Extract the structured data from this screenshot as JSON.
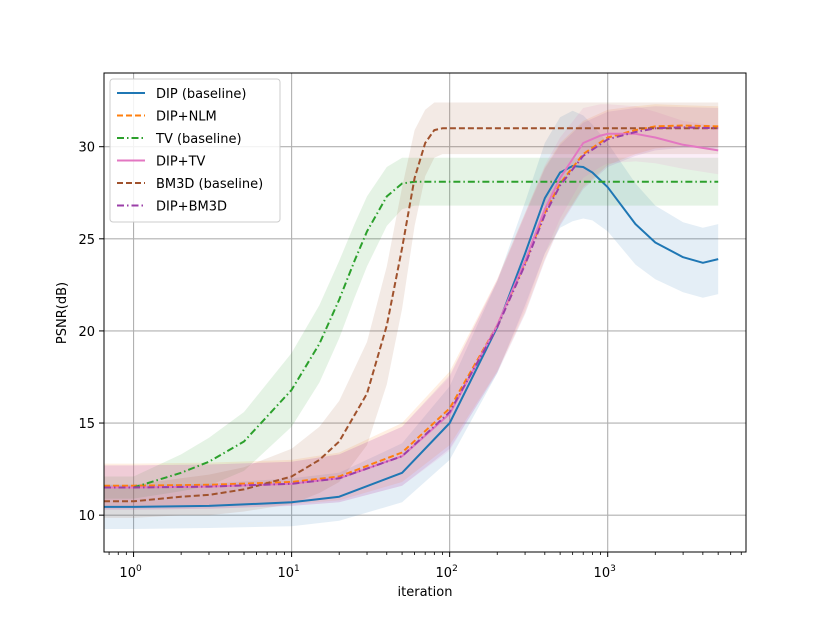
{
  "chart_data": {
    "type": "line",
    "title": "",
    "xlabel": "iteration",
    "ylabel": "PSNR(dB)",
    "xscale": "log",
    "xlim": [
      0.65,
      7500
    ],
    "ylim": [
      8,
      34
    ],
    "x_ticks": [
      {
        "value": 1,
        "base": "10",
        "exp": "0"
      },
      {
        "value": 10,
        "base": "10",
        "exp": "1"
      },
      {
        "value": 100,
        "base": "10",
        "exp": "2"
      },
      {
        "value": 1000,
        "base": "10",
        "exp": "3"
      }
    ],
    "y_ticks": [
      {
        "value": 10,
        "label": "10"
      },
      {
        "value": 15,
        "label": "15"
      },
      {
        "value": 20,
        "label": "20"
      },
      {
        "value": 25,
        "label": "25"
      },
      {
        "value": 30,
        "label": "30"
      }
    ],
    "grid": true,
    "legend_position": "top-left",
    "series": [
      {
        "name": "DIP (baseline)",
        "color": "#1f77b4",
        "dash": "solid",
        "x": [
          0.65,
          1,
          3,
          10,
          20,
          50,
          100,
          200,
          300,
          400,
          500,
          600,
          700,
          800,
          1000,
          1500,
          2000,
          3000,
          4000,
          5000
        ],
        "y": [
          10.45,
          10.45,
          10.5,
          10.7,
          11.0,
          12.3,
          15.0,
          20.2,
          24.2,
          27.2,
          28.6,
          28.95,
          28.9,
          28.6,
          27.8,
          25.8,
          24.8,
          24.0,
          23.7,
          23.9
        ],
        "band": [
          1.2,
          1.2,
          1.2,
          1.3,
          1.3,
          1.6,
          2.0,
          2.5,
          2.8,
          3.0,
          3.0,
          3.0,
          2.8,
          2.6,
          2.4,
          2.2,
          2.0,
          1.9,
          1.9,
          1.9
        ]
      },
      {
        "name": "DIP+NLM",
        "color": "#ff7f0e",
        "dash": "dashed",
        "x": [
          0.65,
          1,
          3,
          10,
          20,
          50,
          100,
          200,
          300,
          400,
          500,
          700,
          1000,
          1500,
          2000,
          3000,
          5000
        ],
        "y": [
          11.6,
          11.6,
          11.65,
          11.8,
          12.1,
          13.4,
          15.8,
          20.3,
          23.7,
          26.4,
          28.0,
          29.6,
          30.5,
          30.9,
          31.1,
          31.15,
          31.1
        ],
        "band": [
          1.2,
          1.2,
          1.2,
          1.2,
          1.3,
          1.6,
          2.0,
          2.5,
          2.7,
          2.5,
          2.2,
          1.8,
          1.5,
          1.3,
          1.2,
          1.1,
          1.1
        ]
      },
      {
        "name": "TV (baseline)",
        "color": "#2ca02c",
        "dash": "dashdot",
        "x": [
          0.65,
          1,
          2,
          3,
          5,
          10,
          15,
          20,
          25,
          30,
          40,
          50,
          60,
          80,
          100,
          1000,
          5000
        ],
        "y": [
          11.5,
          11.5,
          12.3,
          12.9,
          14.0,
          16.8,
          19.3,
          21.7,
          23.8,
          25.4,
          27.3,
          28.0,
          28.1,
          28.1,
          28.1,
          28.1,
          28.1
        ],
        "band": [
          0.6,
          0.6,
          1.0,
          1.3,
          1.6,
          2.0,
          2.1,
          2.1,
          2.0,
          1.9,
          1.6,
          1.4,
          1.3,
          1.3,
          1.3,
          1.3,
          1.3
        ]
      },
      {
        "name": "DIP+TV",
        "color": "#e377c2",
        "dash": "solid",
        "x": [
          0.65,
          1,
          3,
          10,
          20,
          50,
          100,
          200,
          300,
          400,
          500,
          700,
          900,
          1000,
          1500,
          2000,
          3000,
          5000
        ],
        "y": [
          11.5,
          11.5,
          11.55,
          11.7,
          12.0,
          13.2,
          15.5,
          20.3,
          23.8,
          26.6,
          28.3,
          30.2,
          30.6,
          30.7,
          30.7,
          30.5,
          30.1,
          29.8
        ],
        "band": [
          1.2,
          1.2,
          1.2,
          1.2,
          1.3,
          1.6,
          2.0,
          2.5,
          2.6,
          2.4,
          2.2,
          1.9,
          1.7,
          1.6,
          1.5,
          1.4,
          1.3,
          1.3
        ]
      },
      {
        "name": "BM3D (baseline)",
        "color": "#a0522d",
        "dash": "dashed",
        "x": [
          0.65,
          1,
          2,
          3,
          5,
          10,
          15,
          20,
          30,
          40,
          50,
          60,
          70,
          80,
          90,
          100,
          1000,
          5000
        ],
        "y": [
          10.75,
          10.75,
          11.0,
          11.1,
          11.4,
          12.1,
          13.0,
          14.0,
          16.6,
          20.3,
          24.5,
          28.3,
          30.2,
          30.9,
          31.0,
          31.0,
          31.0,
          31.0
        ],
        "band": [
          0.9,
          0.9,
          1.0,
          1.1,
          1.2,
          1.5,
          1.8,
          2.2,
          2.8,
          3.2,
          3.3,
          2.6,
          1.8,
          1.5,
          1.4,
          1.4,
          1.4,
          1.4
        ]
      },
      {
        "name": "DIP+BM3D",
        "color": "#9b3fa8",
        "dash": "dashdot",
        "x": [
          0.65,
          1,
          3,
          10,
          20,
          50,
          100,
          200,
          300,
          400,
          500,
          700,
          1000,
          1500,
          2000,
          3000,
          5000
        ],
        "y": [
          11.5,
          11.5,
          11.55,
          11.7,
          12.0,
          13.2,
          15.6,
          20.2,
          23.6,
          26.3,
          27.9,
          29.5,
          30.4,
          30.8,
          31.0,
          31.05,
          31.0
        ],
        "band": [
          1.2,
          1.2,
          1.2,
          1.2,
          1.3,
          1.6,
          2.0,
          2.5,
          2.7,
          2.5,
          2.2,
          1.8,
          1.5,
          1.3,
          1.2,
          1.1,
          1.1
        ]
      }
    ]
  }
}
